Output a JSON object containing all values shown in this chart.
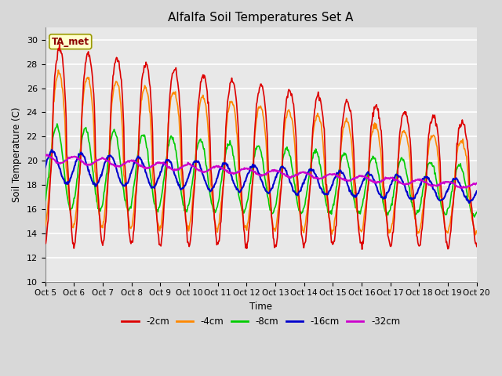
{
  "title": "Alfalfa Soil Temperatures Set A",
  "xlabel": "Time",
  "ylabel": "Soil Temperature (C)",
  "ylim": [
    10,
    31
  ],
  "yticks": [
    10,
    12,
    14,
    16,
    18,
    20,
    22,
    24,
    26,
    28,
    30
  ],
  "background_color": "#e8e8e8",
  "grid_color": "#ffffff",
  "annotation_text": "TA_met",
  "annotation_color": "#8B0000",
  "annotation_bg": "#ffffcc",
  "series": {
    "-2cm": {
      "color": "#dd0000",
      "lw": 1.2
    },
    "-4cm": {
      "color": "#ff8800",
      "lw": 1.2
    },
    "-8cm": {
      "color": "#00cc00",
      "lw": 1.2
    },
    "-16cm": {
      "color": "#0000cc",
      "lw": 1.5
    },
    "-32cm": {
      "color": "#cc00cc",
      "lw": 1.5
    }
  },
  "x_tick_labels": [
    "Oct 5",
    "Oct 6",
    "Oct 7",
    "Oct 8",
    "Oct 9",
    "Oct 10",
    "Oct 11",
    "Oct 12",
    "Oct 13",
    "Oct 14",
    "Oct 15",
    "Oct 16",
    "Oct 17",
    "Oct 18",
    "Oct 19",
    "Oct 20"
  ],
  "legend_colors": [
    "#dd0000",
    "#ff8800",
    "#00cc00",
    "#0000cc",
    "#cc00cc"
  ],
  "legend_labels": [
    "-2cm",
    "-4cm",
    "-8cm",
    "-16cm",
    "-32cm"
  ]
}
